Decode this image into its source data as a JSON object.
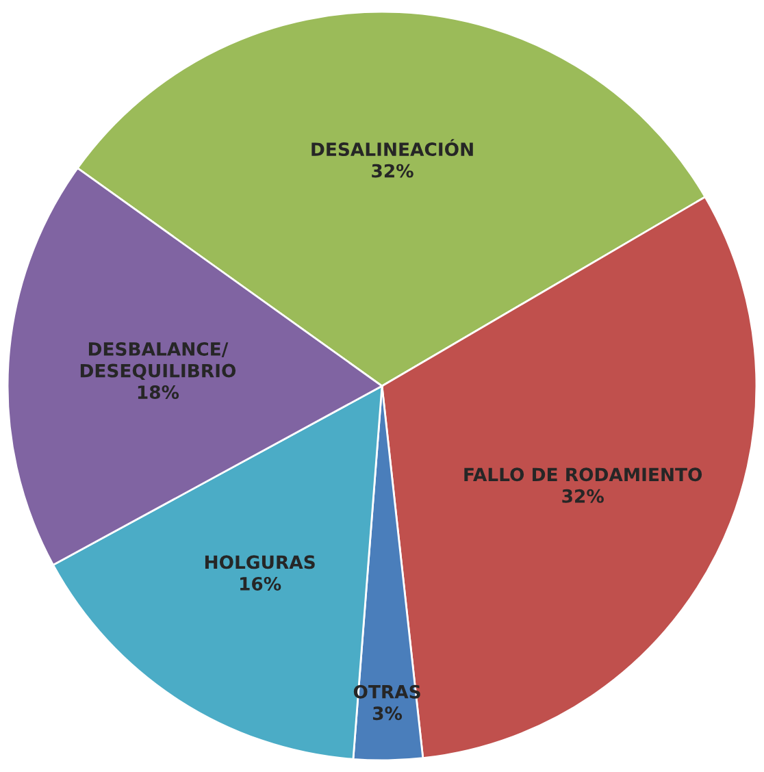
{
  "chart_data": {
    "type": "pie",
    "categories": [
      "DESALINEACIÓN",
      "FALLO DE RODAMIENTO",
      "OTRAS",
      "HOLGURAS",
      "DESBALANCE/\nDESEQUILIBRIO"
    ],
    "values": [
      32,
      32,
      3,
      16,
      18
    ],
    "colors": [
      "#9bbb59",
      "#c0504d",
      "#4a7ebb",
      "#4bacc6",
      "#8064a2"
    ],
    "value_labels": [
      "32%",
      "32%",
      "3%",
      "16%",
      "18%"
    ]
  }
}
